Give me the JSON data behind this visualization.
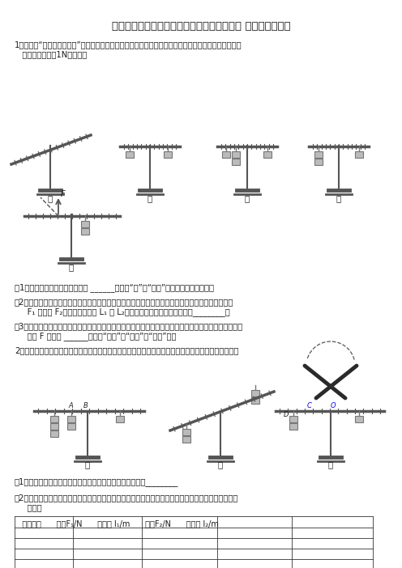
{
  "title": "人教版八年级物理下期第十二章《简单机械》 重点实验小专题",
  "q1_text_1": "1．在探究“杠杆平衡的条件”实验中，所用的实验器材有：杠杆（每小格均等长）、铁架台、刻度尺、细",
  "q1_text_2": "   线和若干个重为1N的钩码。",
  "q1_sub1": "（1）杠杆在如图甲的位置静止时 ______（选填“是”或“不是”）处于杠杆平衡状态。",
  "q1_sub2a": "（2）杠杆调节好后，进行了三次实验，实验情景如图乙、丙、丁所示，以两边钩码的重力分别为动力",
  "q1_sub2b": "     F₁ 和阻力 F₂，对应的力臂为 L₁ 和 L₂，由此可得杠杆的平衡条件为：________。",
  "q1_sub3a": "（3）如图戊所示，用细绳竖直向上拉，使杠杆在水平位置平衡，保持杠杆平衡，将细绳转到虚线位置时，",
  "q1_sub3b": "     拉力 F 大小将 ______（选填“变大”、“不变”或“变小”）。",
  "q2_text": "2．某物理实验小组利用如图所示装置探究杠杆的平衡条件，实验中每个钩码重力相等，杠杆刻度均匀。",
  "q2_sub1": "（1）在实验过程中，将杠杆在水平位置调节平衡，目的是：________",
  "q2_sub2a": "（2）小明调节杠杆水平平衡后，如图甲在杠杆左右两侧挂钩码，调节杠杆平衡，并记录三组数据如下表",
  "q2_sub2b": "     所示：",
  "q2_table_header": "   实验次数      动力F₁/N      动力臂 l₁/m      阻力F₂/N      阻力臂 l₂/m",
  "bg_color": "#ffffff",
  "text_color": "#1a1a1a",
  "diagram_color": "#555555"
}
